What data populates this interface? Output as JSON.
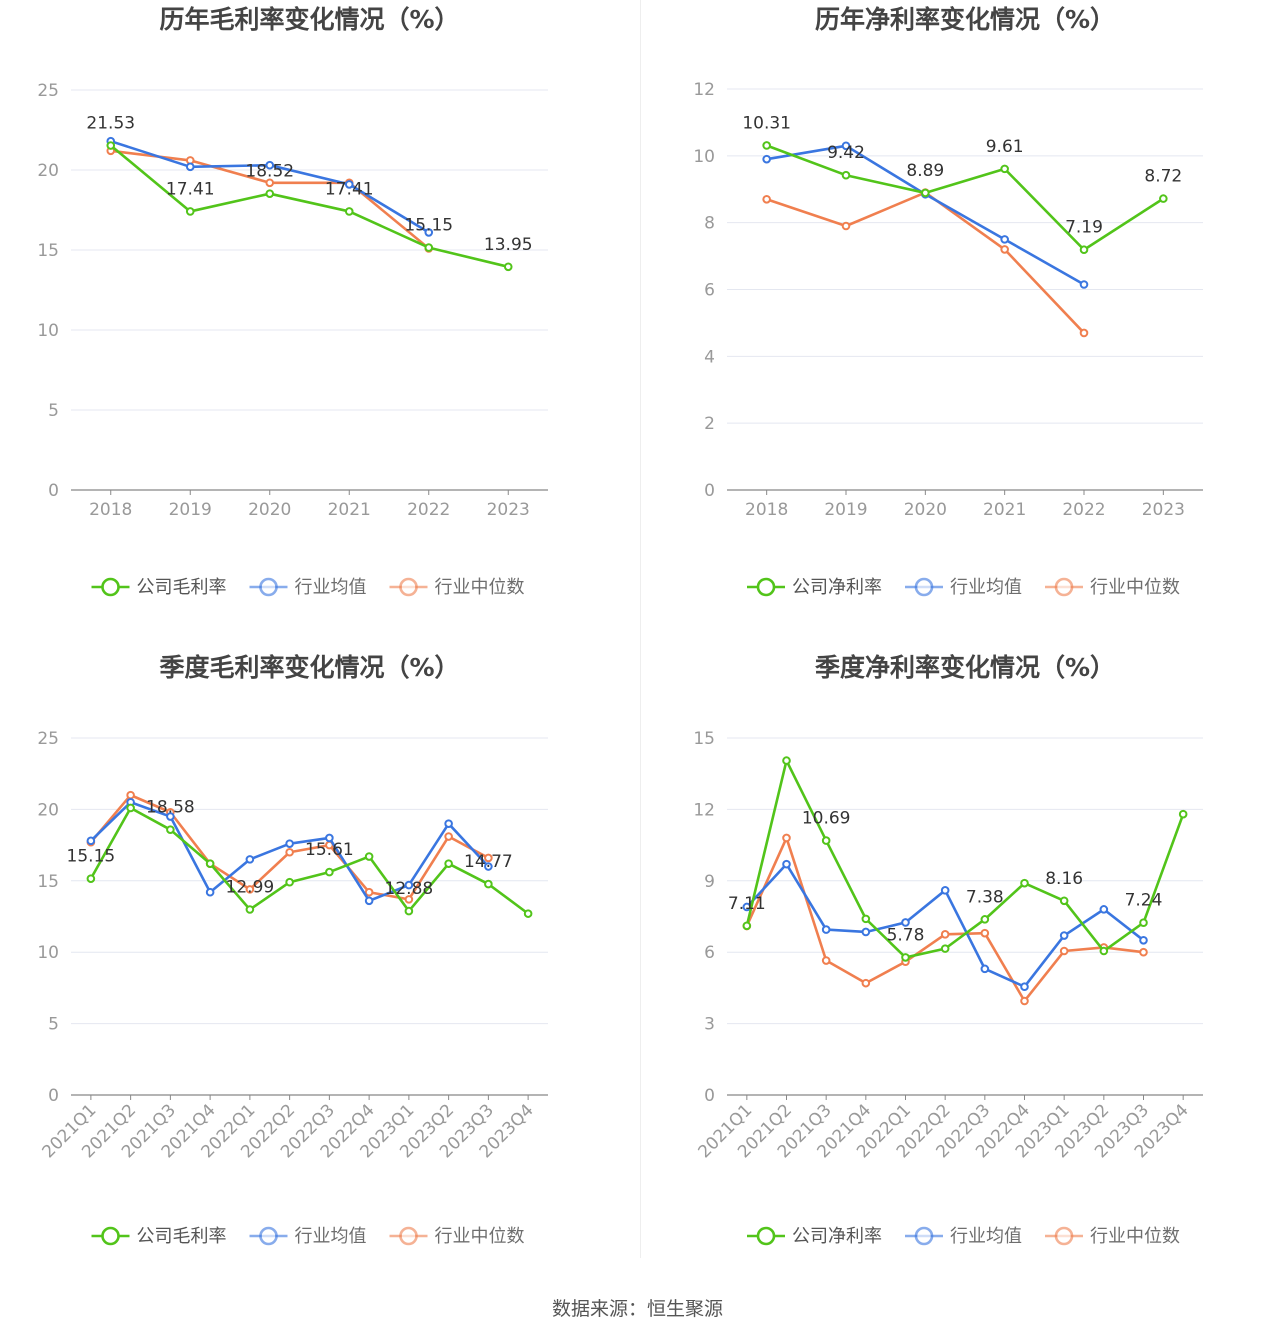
{
  "colors": {
    "company": "#52c41a",
    "avg": "#3a76e0",
    "median": "#f07f4f"
  },
  "source_text": "数据来源：恒生聚源",
  "chart_data": [
    {
      "type": "line",
      "title": "历年毛利率变化情况（%）",
      "categories": [
        "2018",
        "2019",
        "2020",
        "2021",
        "2022",
        "2023"
      ],
      "ylim": [
        0,
        25
      ],
      "yticks": [
        0,
        5,
        10,
        15,
        20,
        25
      ],
      "legend_position": "bottom",
      "grid": true,
      "series": [
        {
          "name": "公司毛利率",
          "color": "#52c41a",
          "values": [
            21.53,
            17.41,
            18.52,
            17.41,
            15.15,
            13.95
          ]
        },
        {
          "name": "行业均值",
          "color": "#3a76e0",
          "values": [
            21.8,
            20.2,
            20.3,
            19.1,
            16.1,
            null
          ]
        },
        {
          "name": "行业中位数",
          "color": "#f07f4f",
          "values": [
            21.2,
            20.6,
            19.2,
            19.2,
            15.1,
            null
          ]
        }
      ],
      "labels": [
        "21.53",
        "17.41",
        "18.52",
        "17.41",
        "15.15",
        "13.95"
      ]
    },
    {
      "type": "line",
      "title": "历年净利率变化情况（%）",
      "categories": [
        "2018",
        "2019",
        "2020",
        "2021",
        "2022",
        "2023"
      ],
      "ylim": [
        0,
        12
      ],
      "yticks": [
        0,
        2,
        4,
        6,
        8,
        10,
        12
      ],
      "legend_position": "bottom",
      "grid": true,
      "series": [
        {
          "name": "公司净利率",
          "color": "#52c41a",
          "values": [
            10.31,
            9.42,
            8.89,
            9.61,
            7.19,
            8.72
          ]
        },
        {
          "name": "行业均值",
          "color": "#3a76e0",
          "values": [
            9.9,
            10.3,
            8.85,
            7.5,
            6.15,
            null
          ]
        },
        {
          "name": "行业中位数",
          "color": "#f07f4f",
          "values": [
            8.7,
            7.9,
            8.9,
            7.2,
            4.7,
            null
          ]
        }
      ],
      "labels": [
        "10.31",
        "9.42",
        "8.89",
        "9.61",
        "7.19",
        "8.72"
      ]
    },
    {
      "type": "line",
      "title": "季度毛利率变化情况（%）",
      "categories": [
        "2021Q1",
        "2021Q2",
        "2021Q3",
        "2021Q4",
        "2022Q1",
        "2022Q2",
        "2022Q3",
        "2022Q4",
        "2023Q1",
        "2023Q2",
        "2023Q3",
        "2023Q4"
      ],
      "ylim": [
        0,
        25
      ],
      "yticks": [
        0,
        5,
        10,
        15,
        20,
        25
      ],
      "legend_position": "bottom",
      "grid": true,
      "series": [
        {
          "name": "公司毛利率",
          "color": "#52c41a",
          "values": [
            15.15,
            20.1,
            18.58,
            16.2,
            12.99,
            14.9,
            15.61,
            16.7,
            12.88,
            16.2,
            14.77,
            12.7
          ]
        },
        {
          "name": "行业均值",
          "color": "#3a76e0",
          "values": [
            17.8,
            20.5,
            19.5,
            14.2,
            16.5,
            17.6,
            18.0,
            13.6,
            14.7,
            19.0,
            16.0,
            null
          ]
        },
        {
          "name": "行业中位数",
          "color": "#f07f4f",
          "values": [
            17.7,
            21.0,
            19.8,
            16.2,
            14.4,
            17.0,
            17.5,
            14.2,
            13.7,
            18.1,
            16.6,
            null
          ]
        }
      ],
      "labels": [
        "15.15",
        "",
        "18.58",
        "",
        "12.99",
        "",
        "15.61",
        "",
        "12.88",
        "",
        "14.77",
        ""
      ]
    },
    {
      "type": "line",
      "title": "季度净利率变化情况（%）",
      "categories": [
        "2021Q1",
        "2021Q2",
        "2021Q3",
        "2021Q4",
        "2022Q1",
        "2022Q2",
        "2022Q3",
        "2022Q4",
        "2023Q1",
        "2023Q2",
        "2023Q3",
        "2023Q4"
      ],
      "ylim": [
        0,
        15
      ],
      "yticks": [
        0,
        3,
        6,
        9,
        12,
        15
      ],
      "legend_position": "bottom",
      "grid": true,
      "series": [
        {
          "name": "公司净利率",
          "color": "#52c41a",
          "values": [
            7.11,
            14.05,
            10.69,
            7.4,
            5.78,
            6.15,
            7.38,
            8.9,
            8.16,
            6.05,
            7.24,
            11.8
          ]
        },
        {
          "name": "行业均值",
          "color": "#3a76e0",
          "values": [
            7.9,
            9.7,
            6.95,
            6.85,
            7.25,
            8.6,
            5.3,
            4.55,
            6.7,
            7.8,
            6.5,
            null
          ]
        },
        {
          "name": "行业中位数",
          "color": "#f07f4f",
          "values": [
            7.1,
            10.8,
            5.65,
            4.7,
            5.6,
            6.75,
            6.8,
            3.95,
            6.05,
            6.2,
            6.0,
            null
          ]
        }
      ],
      "labels": [
        "7.11",
        "",
        "10.69",
        "",
        "5.78",
        "",
        "7.38",
        "",
        "8.16",
        "",
        "7.24",
        ""
      ]
    }
  ]
}
